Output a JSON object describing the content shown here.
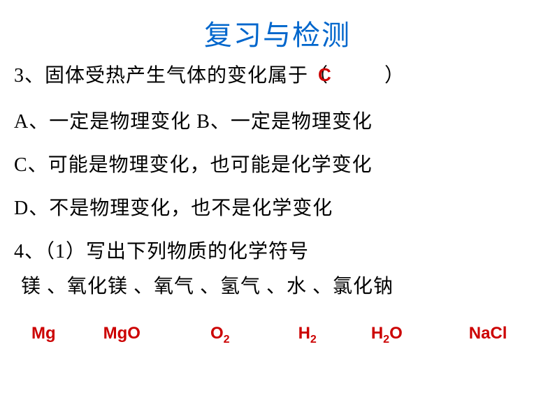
{
  "title": "复习与检测",
  "question3": {
    "stem_before": "3、固体受热产生气体的变化属于（",
    "stem_after": "）",
    "answer": "C",
    "answer_color": "#cc0000",
    "optionA_B": "A、一定是物理变化 B、一定是物理变化",
    "optionC": "C、可能是物理变化，也可能是化学变化",
    "optionD": "D、不是物理变化，也不是化学变化"
  },
  "question4": {
    "stem": "4、（1）写出下列物质的化学符号",
    "substances": "镁 、氧化镁 、氧气 、氢气 、水 、氯化钠",
    "formulas": [
      {
        "display": "Mg",
        "sub": ""
      },
      {
        "display": "MgO",
        "sub": ""
      },
      {
        "display": "O",
        "sub": "2"
      },
      {
        "display": "H",
        "sub": "2"
      },
      {
        "display": "H",
        "sub": "2",
        "after": "O"
      },
      {
        "display": "NaCl",
        "sub": ""
      }
    ]
  },
  "colors": {
    "title_color": "#0066cc",
    "text_color": "#000000",
    "answer_color": "#cc0000",
    "background_color": "#ffffff"
  },
  "typography": {
    "title_fontsize": 40,
    "body_fontsize": 28,
    "formula_fontsize": 24
  }
}
